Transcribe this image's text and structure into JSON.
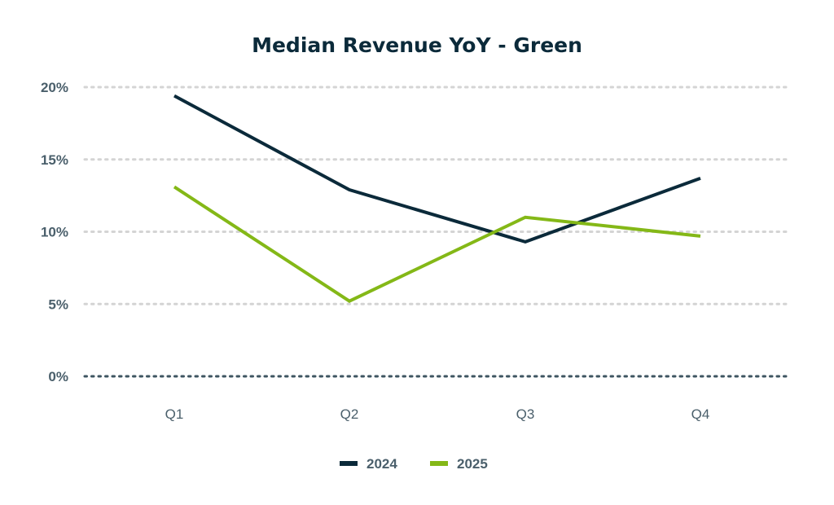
{
  "chart_data": {
    "type": "line",
    "title": "Median Revenue YoY - Green",
    "xlabel": "",
    "ylabel": "",
    "categories": [
      "Q1",
      "Q2",
      "Q3",
      "Q4"
    ],
    "series": [
      {
        "name": "2024",
        "color": "#0b2a3a",
        "values": [
          19.4,
          12.9,
          9.3,
          13.7
        ]
      },
      {
        "name": "2025",
        "color": "#84b817",
        "values": [
          13.1,
          5.2,
          11.0,
          9.7
        ]
      }
    ],
    "ylim": [
      0,
      20
    ],
    "yticks": [
      0,
      5,
      10,
      15,
      20
    ],
    "ytick_labels": [
      "0%",
      "5%",
      "10%",
      "15%",
      "20%"
    ],
    "grid": true,
    "legend_position": "bottom-center"
  }
}
